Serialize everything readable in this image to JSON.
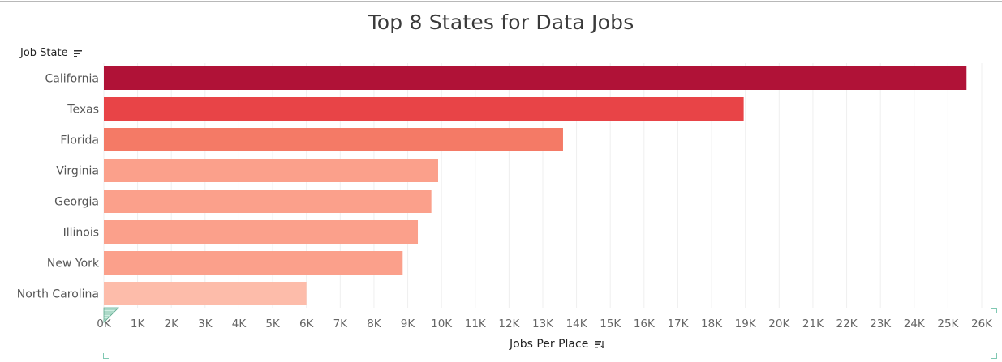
{
  "chart_data": {
    "type": "bar",
    "orientation": "horizontal",
    "title": "Top 8 States for Data Jobs",
    "ylabel": "Job State",
    "xlabel": "Jobs Per Place",
    "categories": [
      "California",
      "Texas",
      "Florida",
      "Virginia",
      "Georgia",
      "Illinois",
      "New York",
      "North Carolina"
    ],
    "values": [
      25550,
      18950,
      13600,
      9900,
      9700,
      9300,
      8850,
      6000
    ],
    "xlim": [
      0,
      26000
    ],
    "x_ticks": [
      "0K",
      "1K",
      "2K",
      "3K",
      "4K",
      "5K",
      "6K",
      "7K",
      "8K",
      "9K",
      "10K",
      "11K",
      "12K",
      "13K",
      "14K",
      "15K",
      "16K",
      "17K",
      "18K",
      "19K",
      "20K",
      "21K",
      "22K",
      "23K",
      "24K",
      "25K",
      "26K"
    ],
    "bar_colors": [
      "#b01237",
      "#e84447",
      "#f47a66",
      "#fba08b",
      "#fba08b",
      "#fba08b",
      "#fba08b",
      "#fdbcaa"
    ],
    "grid": true,
    "legend": "none"
  }
}
